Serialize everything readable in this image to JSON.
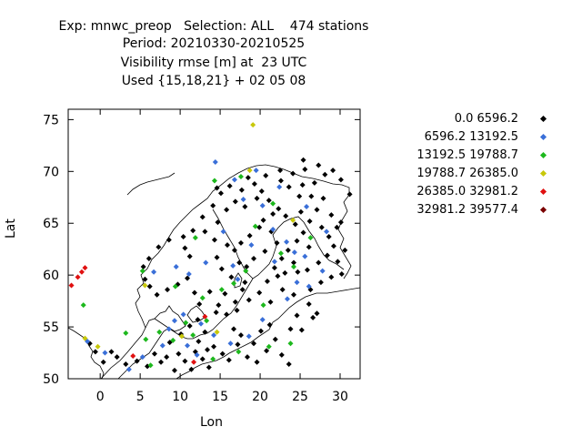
{
  "chart_data": {
    "type": "scatter",
    "title_lines": [
      "Exp: mnwc_preop   Selection: ALL    474 stations",
      "Period: 20210330-20210525",
      "Visibility rmse [m] at  23 UTC",
      "Used {15,18,21} + 02 05 08"
    ],
    "xlabel": "Lon",
    "ylabel": "Lat",
    "xlim": [
      -4,
      32.5
    ],
    "ylim": [
      50,
      76
    ],
    "xticks": [
      0,
      5,
      10,
      15,
      20,
      25,
      30
    ],
    "yticks": [
      50,
      55,
      60,
      65,
      70,
      75
    ],
    "legend_position": "right",
    "series": [
      {
        "name": "0.0 6596.2",
        "color": "#000000",
        "points": [
          [
            10.1,
            54.3
          ],
          [
            11.2,
            55.1
          ],
          [
            12.3,
            53.6
          ],
          [
            13.4,
            52.8
          ],
          [
            9.8,
            52.4
          ],
          [
            10.6,
            51.7
          ],
          [
            12.8,
            51.9
          ],
          [
            14.2,
            53.1
          ],
          [
            11.9,
            52.6
          ],
          [
            8.7,
            53.5
          ],
          [
            13.1,
            54.5
          ],
          [
            15.3,
            52.4
          ],
          [
            16.1,
            51.8
          ],
          [
            17.2,
            53.3
          ],
          [
            18.4,
            52.1
          ],
          [
            19.6,
            51.6
          ],
          [
            20.8,
            52.7
          ],
          [
            21.9,
            53.8
          ],
          [
            22.7,
            52.3
          ],
          [
            23.6,
            51.4
          ],
          [
            15.8,
            56.2
          ],
          [
            16.9,
            57.4
          ],
          [
            17.8,
            58.6
          ],
          [
            18.1,
            59.3
          ],
          [
            16.4,
            59.8
          ],
          [
            15.2,
            60.6
          ],
          [
            14.6,
            61.7
          ],
          [
            16.8,
            62.4
          ],
          [
            17.6,
            63.1
          ],
          [
            18.7,
            63.8
          ],
          [
            19.9,
            64.6
          ],
          [
            20.4,
            65.3
          ],
          [
            21.6,
            65.9
          ],
          [
            22.3,
            66.4
          ],
          [
            21.1,
            67.2
          ],
          [
            20.2,
            68.1
          ],
          [
            19.3,
            68.8
          ],
          [
            18.5,
            69.4
          ],
          [
            20.7,
            69.6
          ],
          [
            22.6,
            69.1
          ],
          [
            24.1,
            69.8
          ],
          [
            25.3,
            68.7
          ],
          [
            26.4,
            67.6
          ],
          [
            27.1,
            66.3
          ],
          [
            26.2,
            65.2
          ],
          [
            25.4,
            64.1
          ],
          [
            24.6,
            63.3
          ],
          [
            23.5,
            62.4
          ],
          [
            22.7,
            61.6
          ],
          [
            21.8,
            60.7
          ],
          [
            23.1,
            60.2
          ],
          [
            24.7,
            60.3
          ],
          [
            25.9,
            60.5
          ],
          [
            27.3,
            61.2
          ],
          [
            28.4,
            61.9
          ],
          [
            29.2,
            62.8
          ],
          [
            28.6,
            63.7
          ],
          [
            27.7,
            64.6
          ],
          [
            28.9,
            65.8
          ],
          [
            27.9,
            67.4
          ],
          [
            26.8,
            68.9
          ],
          [
            25.6,
            70.2
          ],
          [
            27.3,
            70.6
          ],
          [
            29.1,
            70.1
          ],
          [
            30.1,
            69.2
          ],
          [
            31.2,
            67.8
          ],
          [
            28.1,
            69.7
          ],
          [
            24.4,
            64.9
          ],
          [
            22.1,
            63.1
          ],
          [
            20.6,
            62.3
          ],
          [
            19.2,
            61.6
          ],
          [
            18.3,
            60.8
          ],
          [
            17.4,
            61.2
          ],
          [
            15.9,
            62.9
          ],
          [
            14.3,
            63.4
          ],
          [
            13.1,
            64.2
          ],
          [
            14.7,
            65.1
          ],
          [
            15.8,
            66.3
          ],
          [
            16.9,
            67.1
          ],
          [
            17.7,
            68.2
          ],
          [
            16.2,
            68.6
          ],
          [
            18.1,
            66.6
          ],
          [
            19.6,
            67.4
          ],
          [
            21.4,
            64.2
          ],
          [
            23.2,
            65.7
          ],
          [
            25.1,
            66.1
          ],
          [
            26.1,
            62.7
          ],
          [
            24.2,
            61.2
          ],
          [
            22.2,
            59.9
          ],
          [
            20.9,
            59.4
          ],
          [
            12.4,
            57.2
          ],
          [
            11.8,
            58.3
          ],
          [
            10.9,
            59.7
          ],
          [
            9.7,
            59.1
          ],
          [
            8.4,
            58.6
          ],
          [
            7.1,
            58.1
          ],
          [
            6.2,
            58.9
          ],
          [
            5.6,
            59.6
          ],
          [
            5.4,
            60.8
          ],
          [
            6.1,
            61.6
          ],
          [
            7.3,
            62.7
          ],
          [
            8.6,
            63.4
          ],
          [
            10.4,
            63.7
          ],
          [
            11.6,
            64.3
          ],
          [
            12.8,
            65.6
          ],
          [
            14.1,
            66.7
          ],
          [
            15.1,
            67.9
          ],
          [
            14.6,
            68.4
          ],
          [
            11.2,
            61.8
          ],
          [
            10.6,
            62.6
          ],
          [
            13.7,
            58.4
          ],
          [
            14.8,
            57.1
          ],
          [
            15.6,
            58.2
          ],
          [
            17.1,
            56.6
          ],
          [
            23.8,
            54.8
          ],
          [
            24.6,
            56.1
          ],
          [
            26.1,
            57.2
          ],
          [
            27.1,
            56.3
          ],
          [
            26.6,
            55.9
          ],
          [
            25.2,
            54.7
          ],
          [
            21.2,
            55.2
          ],
          [
            20.1,
            54.6
          ],
          [
            19.2,
            53.4
          ],
          [
            17.6,
            54.2
          ],
          [
            16.7,
            54.8
          ],
          [
            6.8,
            52.4
          ],
          [
            7.6,
            51.6
          ],
          [
            8.3,
            52.1
          ],
          [
            5.9,
            51.2
          ],
          [
            4.6,
            51.7
          ],
          [
            3.2,
            51.4
          ],
          [
            2.1,
            52.1
          ],
          [
            9.3,
            50.8
          ],
          [
            11.4,
            50.9
          ],
          [
            13.6,
            51.1
          ],
          [
            -1.3,
            53.4
          ],
          [
            -0.6,
            52.6
          ],
          [
            0.4,
            51.6
          ],
          [
            1.4,
            52.6
          ],
          [
            12.2,
            55.7
          ],
          [
            14.5,
            56.4
          ],
          [
            18.6,
            57.6
          ],
          [
            19.9,
            58.3
          ],
          [
            21.3,
            57.4
          ],
          [
            22.8,
            58.6
          ],
          [
            24.2,
            58.1
          ],
          [
            26.3,
            58.6
          ],
          [
            27.6,
            59.3
          ],
          [
            28.9,
            59.8
          ],
          [
            30.2,
            60.1
          ],
          [
            29.7,
            61.3
          ],
          [
            30.6,
            62.4
          ],
          [
            29.6,
            64.6
          ],
          [
            30.1,
            65.1
          ],
          [
            24.9,
            67.6
          ],
          [
            23.6,
            68.5
          ],
          [
            22.5,
            70.1
          ],
          [
            25.4,
            71.1
          ]
        ]
      },
      {
        "name": "6596.2 13192.5",
        "color": "#3a6fd8",
        "points": [
          [
            -1.6,
            53.6
          ],
          [
            0.6,
            52.5
          ],
          [
            5.3,
            52.1
          ],
          [
            8.6,
            54.8
          ],
          [
            9.3,
            55.6
          ],
          [
            10.4,
            56.2
          ],
          [
            12.6,
            55.3
          ],
          [
            14.2,
            54.2
          ],
          [
            16.3,
            53.4
          ],
          [
            18.6,
            54.1
          ],
          [
            20.3,
            55.7
          ],
          [
            23.4,
            57.7
          ],
          [
            24.6,
            59.3
          ],
          [
            26.1,
            58.9
          ],
          [
            27.8,
            60.4
          ],
          [
            25.6,
            61.8
          ],
          [
            23.3,
            63.2
          ],
          [
            21.6,
            64.4
          ],
          [
            20.3,
            66.7
          ],
          [
            17.9,
            67.3
          ],
          [
            15.4,
            64.2
          ],
          [
            13.2,
            61.2
          ],
          [
            11.1,
            60.1
          ],
          [
            9.5,
            60.8
          ],
          [
            6.7,
            60.3
          ],
          [
            14.4,
            70.9
          ],
          [
            16.8,
            69.2
          ],
          [
            19.5,
            70.1
          ],
          [
            22.4,
            68.5
          ],
          [
            25.8,
            66.6
          ],
          [
            28.3,
            64.2
          ],
          [
            12.1,
            52.3
          ],
          [
            10.9,
            53.2
          ],
          [
            7.8,
            53.2
          ],
          [
            3.6,
            50.9
          ],
          [
            21.8,
            61.3
          ],
          [
            24.3,
            62.2
          ],
          [
            18.9,
            62.9
          ],
          [
            17.2,
            59.6
          ],
          [
            16.6,
            60.9
          ]
        ]
      },
      {
        "name": "13192.5 19788.7",
        "color": "#1db81d",
        "points": [
          [
            -2.1,
            57.1
          ],
          [
            3.2,
            54.4
          ],
          [
            5.7,
            53.8
          ],
          [
            7.4,
            54.5
          ],
          [
            9.1,
            53.7
          ],
          [
            10.7,
            55.4
          ],
          [
            11.6,
            54.2
          ],
          [
            13.3,
            55.6
          ],
          [
            15.2,
            58.6
          ],
          [
            16.7,
            59.2
          ],
          [
            18.2,
            60.4
          ],
          [
            19.4,
            64.7
          ],
          [
            22.6,
            62.1
          ],
          [
            24.2,
            60.8
          ],
          [
            26.3,
            63.6
          ],
          [
            23.8,
            53.4
          ],
          [
            21.1,
            53.1
          ],
          [
            17.3,
            52.6
          ],
          [
            14.1,
            51.9
          ],
          [
            6.3,
            51.3
          ],
          [
            9.4,
            58.9
          ],
          [
            11.9,
            63.6
          ],
          [
            14.3,
            69.1
          ],
          [
            17.6,
            69.5
          ],
          [
            21.6,
            66.9
          ],
          [
            20.4,
            57.1
          ],
          [
            5.3,
            60.4
          ],
          [
            12.8,
            57.8
          ]
        ]
      },
      {
        "name": "19788.7 26385.0",
        "color": "#c8c80a",
        "points": [
          [
            19.1,
            74.5
          ],
          [
            18.7,
            70.1
          ],
          [
            -0.3,
            53.1
          ],
          [
            -1.9,
            53.9
          ],
          [
            5.6,
            59.0
          ],
          [
            10.2,
            54.1
          ],
          [
            14.6,
            54.5
          ],
          [
            24.1,
            65.3
          ]
        ]
      },
      {
        "name": "26385.0 32981.2",
        "color": "#e01010",
        "points": [
          [
            -3.6,
            59.0
          ],
          [
            -2.8,
            59.8
          ],
          [
            -2.3,
            60.3
          ],
          [
            -1.9,
            60.7
          ],
          [
            4.1,
            52.2
          ],
          [
            11.7,
            51.6
          ],
          [
            13.1,
            56.0
          ]
        ]
      },
      {
        "name": "32981.2 39577.4",
        "color": "#7a0000",
        "points": []
      }
    ]
  }
}
